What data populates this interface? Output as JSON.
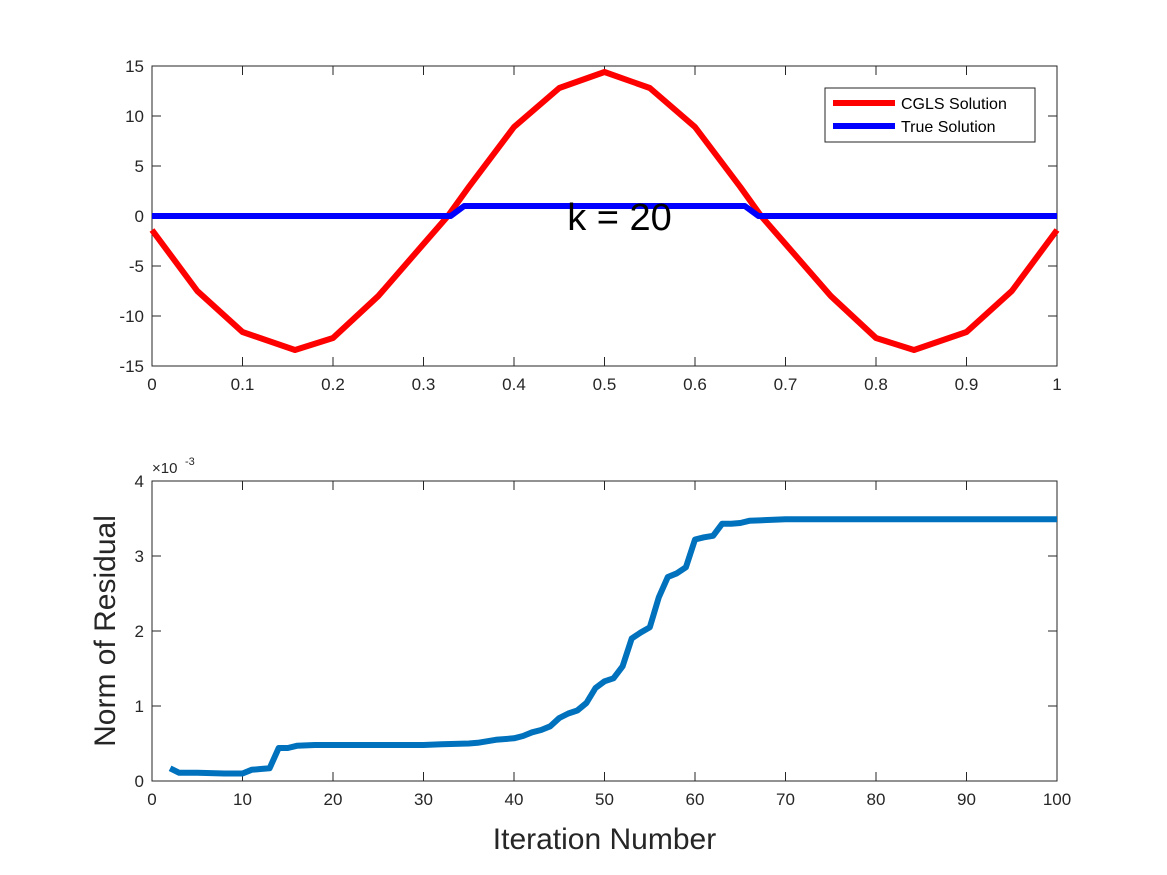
{
  "chart_data": [
    {
      "type": "line",
      "xlim": [
        0,
        1
      ],
      "ylim": [
        -15,
        15
      ],
      "x_ticks": [
        "0",
        "0.1",
        "0.2",
        "0.3",
        "0.4",
        "0.5",
        "0.6",
        "0.7",
        "0.8",
        "0.9",
        "1"
      ],
      "y_ticks": [
        "15",
        "10",
        "5",
        "0",
        "-5",
        "-10",
        "-15"
      ],
      "annotation": "k = 20",
      "legend": {
        "placement": "top-right",
        "entries": [
          "CGLS Solution",
          "True Solution"
        ]
      },
      "series": [
        {
          "name": "CGLS Solution",
          "color": "#ff0000",
          "x": [
            0.0,
            0.05,
            0.1,
            0.158,
            0.2,
            0.25,
            0.3,
            0.327,
            0.35,
            0.4,
            0.45,
            0.5,
            0.55,
            0.6,
            0.65,
            0.673,
            0.7,
            0.75,
            0.8,
            0.842,
            0.9,
            0.95,
            1.0
          ],
          "y": [
            -1.4,
            -7.5,
            -11.6,
            -13.4,
            -12.2,
            -8.0,
            -2.8,
            0.0,
            2.9,
            8.9,
            12.8,
            14.4,
            12.8,
            8.9,
            2.9,
            0.0,
            -2.8,
            -8.0,
            -12.2,
            -13.4,
            -11.6,
            -7.5,
            -1.4
          ]
        },
        {
          "name": "True Solution",
          "color": "#0000ff",
          "x": [
            0.0,
            0.33,
            0.345,
            0.655,
            0.67,
            1.0
          ],
          "y": [
            0,
            0,
            1,
            1,
            0,
            0
          ]
        }
      ]
    },
    {
      "type": "line",
      "xlabel": "Iteration Number",
      "ylabel": "Norm of Residual",
      "xlim": [
        0,
        100
      ],
      "ylim": [
        0,
        4
      ],
      "y_exponent": "×10",
      "y_exponent_power": "-3",
      "x_ticks": [
        "0",
        "10",
        "20",
        "30",
        "40",
        "50",
        "60",
        "70",
        "80",
        "90",
        "100"
      ],
      "y_ticks": [
        "4",
        "3",
        "2",
        "1",
        "0"
      ],
      "series": [
        {
          "color": "#0072bd",
          "x": [
            2,
            3,
            5,
            8,
            10,
            11,
            12,
            13,
            14,
            15,
            16,
            18,
            20,
            25,
            30,
            32,
            35,
            36,
            38,
            40,
            41,
            42,
            43,
            44,
            45,
            46,
            47,
            48,
            49,
            50,
            51,
            52,
            53,
            54,
            55,
            56,
            57,
            58,
            59,
            60,
            61,
            62,
            63,
            64,
            65,
            66,
            68,
            70,
            80,
            90,
            100
          ],
          "y": [
            0.17,
            0.11,
            0.11,
            0.1,
            0.1,
            0.15,
            0.16,
            0.17,
            0.44,
            0.44,
            0.47,
            0.48,
            0.48,
            0.48,
            0.48,
            0.49,
            0.5,
            0.51,
            0.55,
            0.57,
            0.6,
            0.65,
            0.68,
            0.73,
            0.84,
            0.9,
            0.94,
            1.04,
            1.24,
            1.33,
            1.37,
            1.53,
            1.9,
            1.98,
            2.05,
            2.45,
            2.72,
            2.77,
            2.85,
            3.22,
            3.25,
            3.27,
            3.43,
            3.43,
            3.44,
            3.47,
            3.48,
            3.49,
            3.49,
            3.49,
            3.49
          ]
        }
      ]
    }
  ]
}
